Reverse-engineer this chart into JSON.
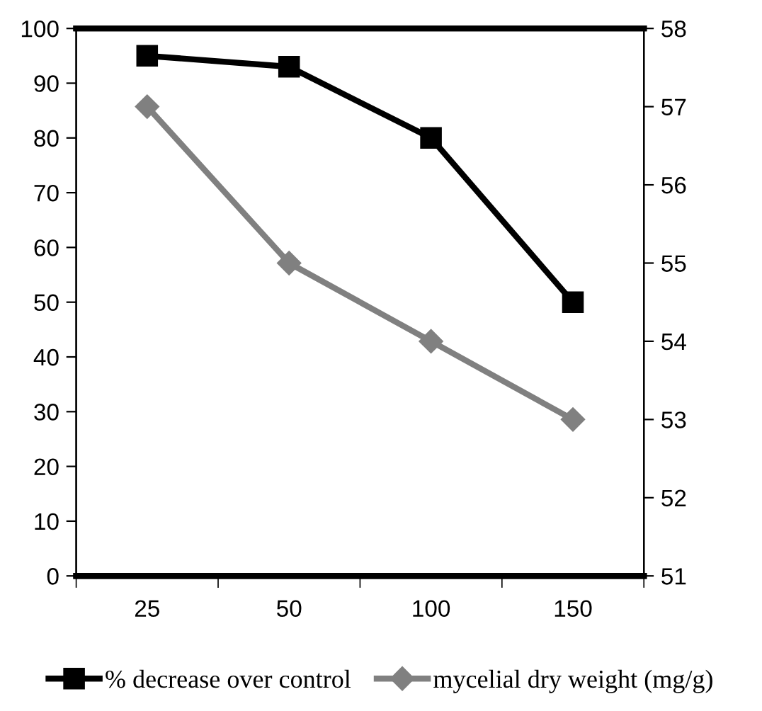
{
  "chart_data": {
    "type": "line",
    "categories": [
      "25",
      "50",
      "100",
      "150"
    ],
    "series": [
      {
        "name": "% decrease over control",
        "color": "#000000",
        "values": [
          95,
          93,
          80,
          50
        ],
        "marker": "square"
      },
      {
        "name": "mycelial dry weight (mg/g)",
        "color": "#808080",
        "values": [
          57,
          55,
          54,
          53
        ],
        "marker": "diamond",
        "axis": "y2"
      }
    ],
    "ylim": [
      0,
      100
    ],
    "yticks": [
      0,
      10,
      20,
      30,
      40,
      50,
      60,
      70,
      80,
      90,
      100
    ],
    "y2lim": [
      51,
      58
    ],
    "y2ticks": [
      51,
      52,
      53,
      54,
      55,
      56,
      57,
      58
    ],
    "grid": false,
    "legend": "bottom",
    "line_style": "solid"
  }
}
